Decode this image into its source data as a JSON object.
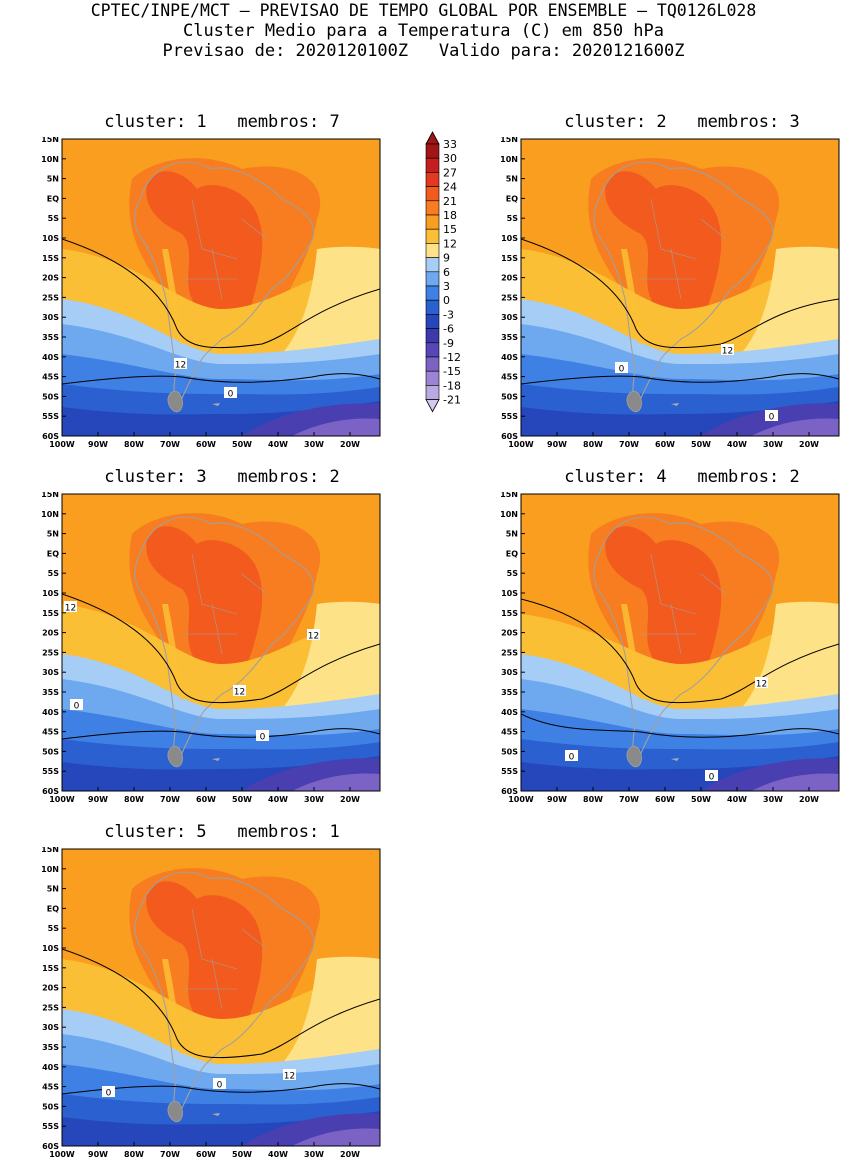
{
  "header": {
    "line1": "CPTEC/INPE/MCT – PREVISAO DE TEMPO GLOBAL POR ENSEMBLE – TQ0126L028",
    "line2": "Cluster Medio para a Temperatura (C) em 850 hPa",
    "line3": "Previsao de: 2020120100Z   Valido para: 2020121600Z"
  },
  "lat_ticks": [
    "15N",
    "10N",
    "5N",
    "EQ",
    "5S",
    "10S",
    "15S",
    "20S",
    "25S",
    "30S",
    "35S",
    "40S",
    "45S",
    "50S",
    "55S",
    "60S"
  ],
  "lon_ticks": [
    "100W",
    "90W",
    "80W",
    "70W",
    "60W",
    "50W",
    "40W",
    "30W",
    "20W"
  ],
  "colorbar": {
    "labels": [
      "33",
      "30",
      "27",
      "24",
      "21",
      "18",
      "15",
      "12",
      "9",
      "6",
      "3",
      "0",
      "-3",
      "-6",
      "-9",
      "-12",
      "-15",
      "-18",
      "-21"
    ],
    "colors": [
      "#a01515",
      "#c41e1e",
      "#e23a22",
      "#f25a1e",
      "#f77d20",
      "#f99e1f",
      "#fbbf35",
      "#fde287",
      "#a6cdf6",
      "#6ea8ef",
      "#3e80e4",
      "#2a60d0",
      "#2647bb",
      "#3b3aab",
      "#5845b8",
      "#7b63c6",
      "#9c84d5",
      "#bba9e2",
      "#d7c9ee"
    ]
  },
  "colors": {
    "c21": "#f25a1e",
    "c18": "#f77d20",
    "c15": "#f99e1f",
    "c12": "#fbbf35",
    "c9": "#fde287",
    "c6": "#a6cdf6",
    "c3": "#6ea8ef",
    "c0": "#3e80e4",
    "cm3": "#2a60d0",
    "cm6": "#2647bb",
    "cm9": "#4a3fb0",
    "cm12": "#7b63c6",
    "coast": "#a0a0a0",
    "contour": "#000000"
  },
  "panels": [
    {
      "title": "cluster: 1   membros: 7",
      "labels": [
        {
          "text": "12"
        },
        {
          "text": "0"
        }
      ]
    },
    {
      "title": "cluster: 2   membros: 3",
      "labels": [
        {
          "text": "0"
        },
        {
          "text": "12"
        },
        {
          "text": "0"
        }
      ]
    },
    {
      "title": "cluster: 3   membros: 2",
      "labels": [
        {
          "text": "12"
        },
        {
          "text": "12"
        },
        {
          "text": "12"
        },
        {
          "text": "0"
        },
        {
          "text": "0"
        }
      ]
    },
    {
      "title": "cluster: 4   membros: 2",
      "labels": [
        {
          "text": "12"
        },
        {
          "text": "0"
        },
        {
          "text": "0"
        }
      ]
    },
    {
      "title": "cluster: 5   membros: 1",
      "labels": [
        {
          "text": "12"
        },
        {
          "text": "0"
        },
        {
          "text": "0"
        }
      ]
    }
  ]
}
